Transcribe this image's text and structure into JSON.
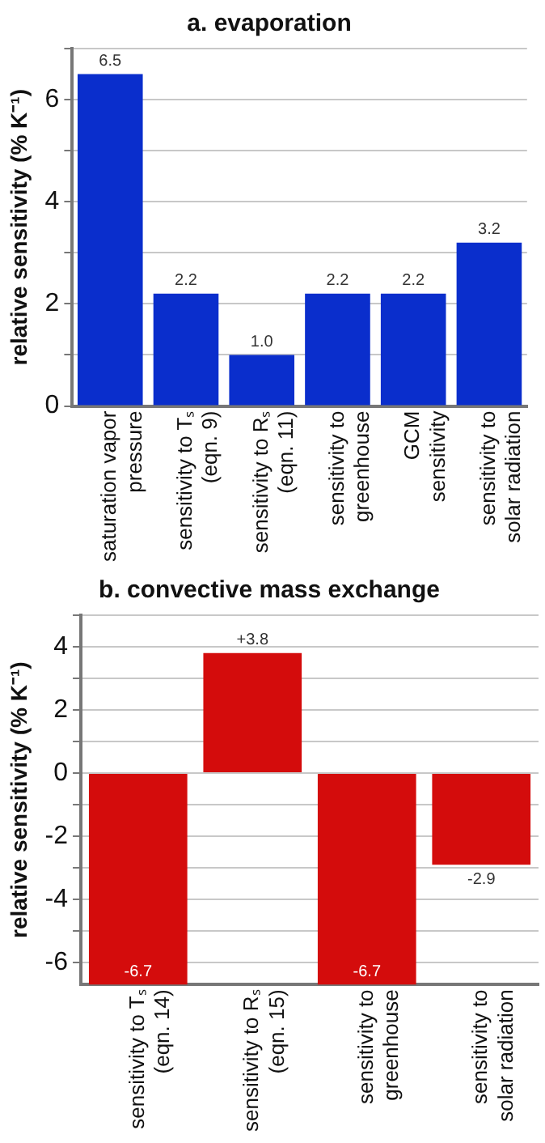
{
  "chart_data": [
    {
      "type": "bar",
      "title": "a. evaporation",
      "ylabel": "relative sensitivity (% K⁻¹)",
      "categories": [
        "saturation vapor\npressure",
        "sensitivity to Tₛ\n(eqn. 9)",
        "sensitivity to Rₛ\n(eqn. 11)",
        "sensitivity to\ngreenhouse",
        "GCM\nsensitivity",
        "sensitivity to\nsolar radiation"
      ],
      "values": [
        6.5,
        2.2,
        1.0,
        2.2,
        2.2,
        3.2
      ],
      "color": "#0a2ecc",
      "value_labels": [
        "6.5",
        "2.2",
        "1.0",
        "2.2",
        "2.2",
        "3.2"
      ],
      "ylim": [
        0,
        7
      ],
      "yticks": [
        0,
        {
          "value": 1,
          "label": null
        },
        2,
        {
          "value": 3,
          "label": null
        },
        4,
        {
          "value": 5,
          "label": null
        },
        6,
        {
          "value": 7,
          "label": null
        }
      ],
      "grid": "y",
      "legend": false
    },
    {
      "type": "bar",
      "title": "b. convective mass exchange",
      "ylabel": "relative sensitivity (% K⁻¹)",
      "categories": [
        "sensitivity to Tₛ\n(eqn. 14)",
        "sensitivity to Rₛ\n(eqn. 15)",
        "sensitivity to\ngreenhouse",
        "sensitivity to\nsolar radiation"
      ],
      "values": [
        -6.7,
        3.8,
        -6.7,
        -2.9
      ],
      "color": "#d40c0c",
      "value_labels": [
        "-6.7",
        "+3.8",
        "-6.7",
        "-2.9"
      ],
      "ylim": [
        -6.7,
        5
      ],
      "yticks": [
        {
          "value": -6,
          "label": "-6"
        },
        {
          "value": -5,
          "label": null
        },
        {
          "value": -4,
          "label": "-4"
        },
        {
          "value": -3,
          "label": null
        },
        {
          "value": -2,
          "label": "-2"
        },
        {
          "value": -1,
          "label": null
        },
        0,
        {
          "value": 1,
          "label": null
        },
        2,
        {
          "value": 3,
          "label": null
        },
        4,
        {
          "value": 5,
          "label": null
        }
      ],
      "grid": "y",
      "legend": false
    }
  ]
}
